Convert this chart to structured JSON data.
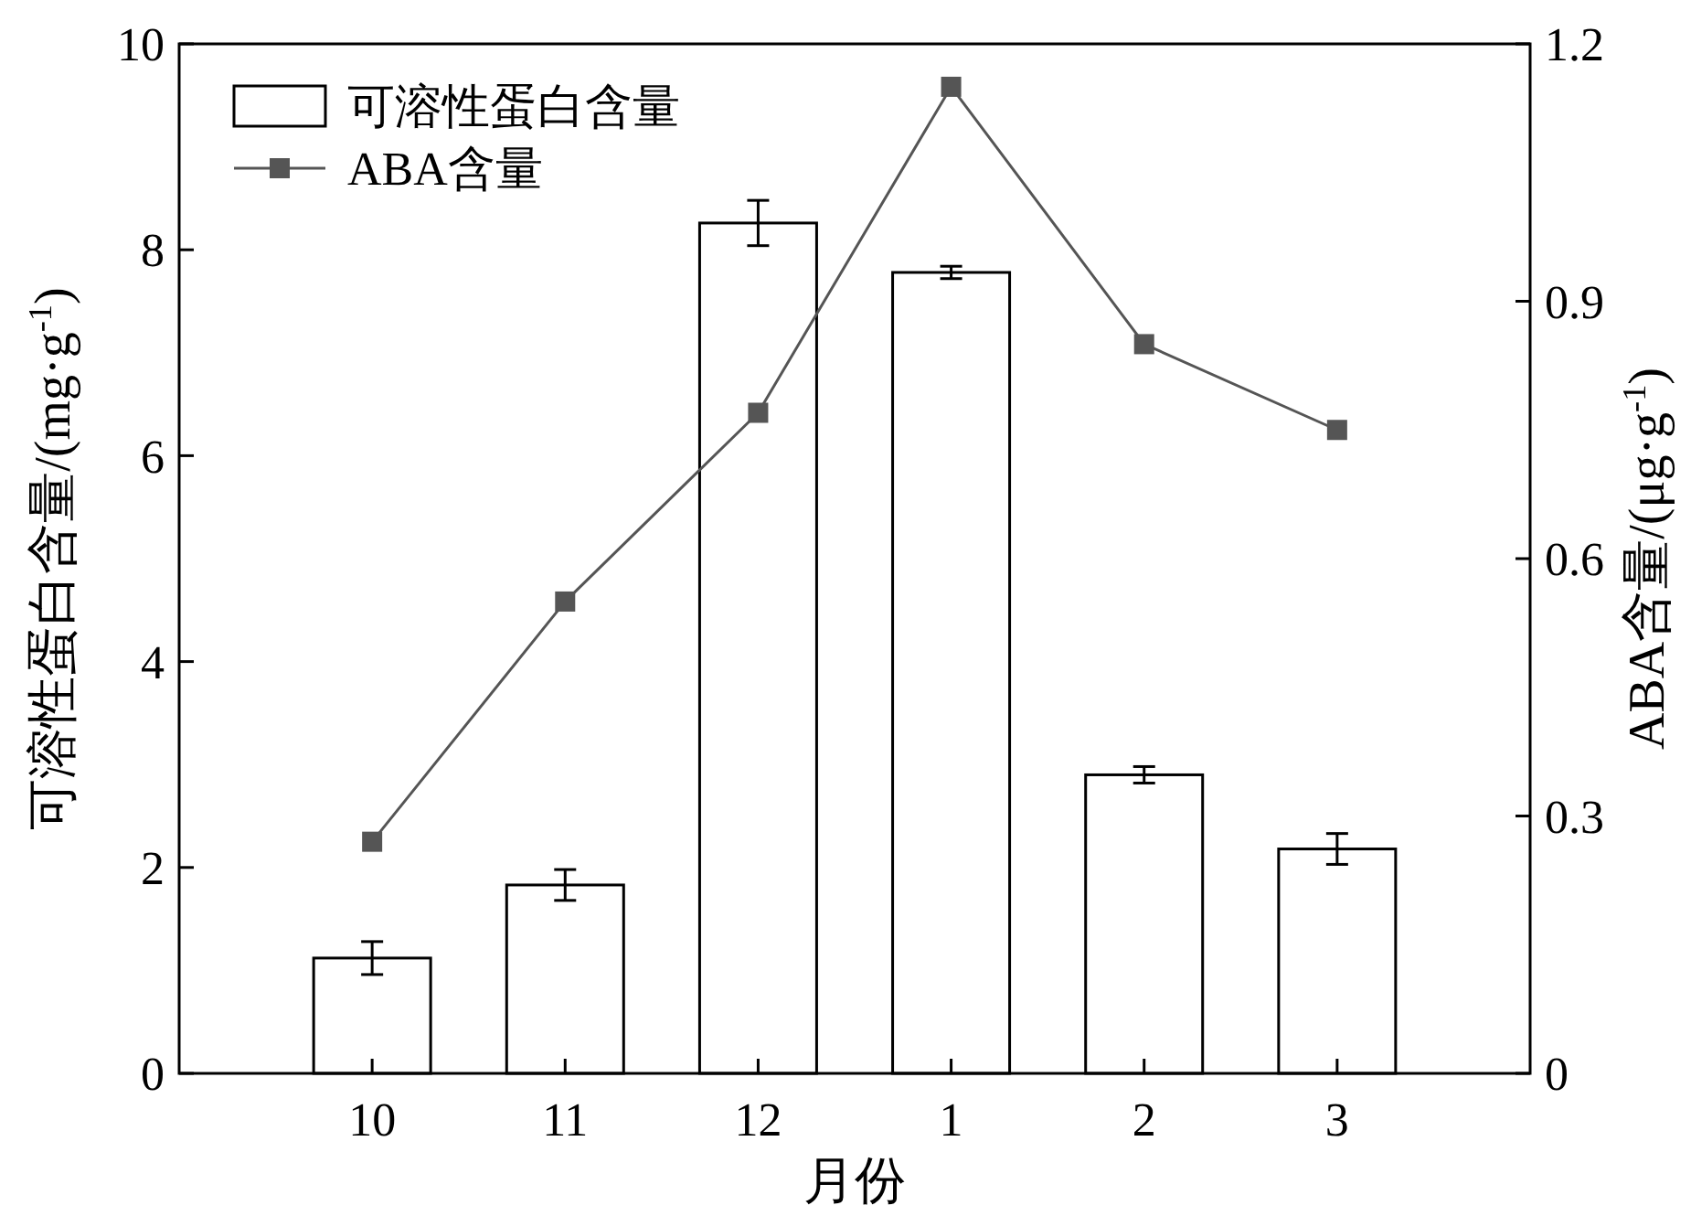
{
  "chart_data": {
    "type": "bar",
    "xlabel": "月份",
    "ylabel": "可溶性蛋白含量/(mg·g$^{-1}$)",
    "y2label": "ABA含量/(μg·g$^{-1}$)",
    "categories": [
      "10",
      "11",
      "12",
      "1",
      "2",
      "3"
    ],
    "series": [
      {
        "name": "可溶性蛋白含量",
        "color": "#ffffff",
        "values": [
          1.12,
          1.83,
          8.26,
          7.78,
          2.9,
          2.18
        ],
        "errors": [
          0.16,
          0.15,
          0.22,
          0.06,
          0.08,
          0.15
        ]
      },
      {
        "name": "ABA含量",
        "type": "line",
        "axis": "y2",
        "color": "#555555",
        "marker": "square",
        "values": [
          0.27,
          0.55,
          0.77,
          1.15,
          0.85,
          0.75
        ]
      }
    ],
    "ylim": [
      0,
      10
    ],
    "yticks": [
      0,
      2,
      4,
      6,
      8,
      10
    ],
    "y2lim": [
      0,
      1.2
    ],
    "y2ticks": [
      {
        "value": 0,
        "label": "0"
      },
      {
        "value": 0.3,
        "label": "0.3"
      },
      {
        "value": 0.6,
        "label": "0.6"
      },
      {
        "value": 0.9,
        "label": "0.9"
      },
      {
        "value": 1.2,
        "label": "1.2"
      }
    ],
    "legend": "top left",
    "grid": false
  }
}
